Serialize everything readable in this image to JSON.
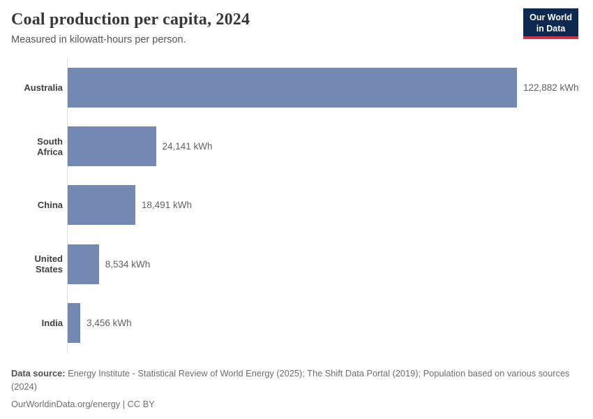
{
  "header": {
    "title": "Coal production per capita, 2024",
    "subtitle": "Measured in kilowatt-hours per person.",
    "logo": {
      "line1": "Our World",
      "line2": "in Data"
    }
  },
  "chart_data": {
    "type": "bar",
    "orientation": "horizontal",
    "title": "Coal production per capita, 2024",
    "unit": "kilowatt-hours per person",
    "categories": [
      "Australia",
      "South Africa",
      "China",
      "United States",
      "India"
    ],
    "values": [
      122882,
      24141,
      18491,
      8534,
      3456
    ],
    "value_labels": [
      "122,882 kWh",
      "24,141 kWh",
      "18,491 kWh",
      "8,534 kWh",
      "3,456 kWh"
    ],
    "xlim": [
      0,
      122882
    ],
    "grid": false,
    "legend": "none",
    "bar_color": "#7389b1",
    "axis_line_color": "#dedede"
  },
  "colors": {
    "logo_navy": "#0c2950",
    "logo_red": "#d4333b",
    "title_text": "#383838"
  },
  "footer": {
    "source_label": "Data source:",
    "source_text": "Energy Institute - Statistical Review of World Energy (2025); The Shift Data Portal (2019); Population based on various sources (2024)",
    "license_text": "OurWorldinData.org/energy | CC BY"
  }
}
